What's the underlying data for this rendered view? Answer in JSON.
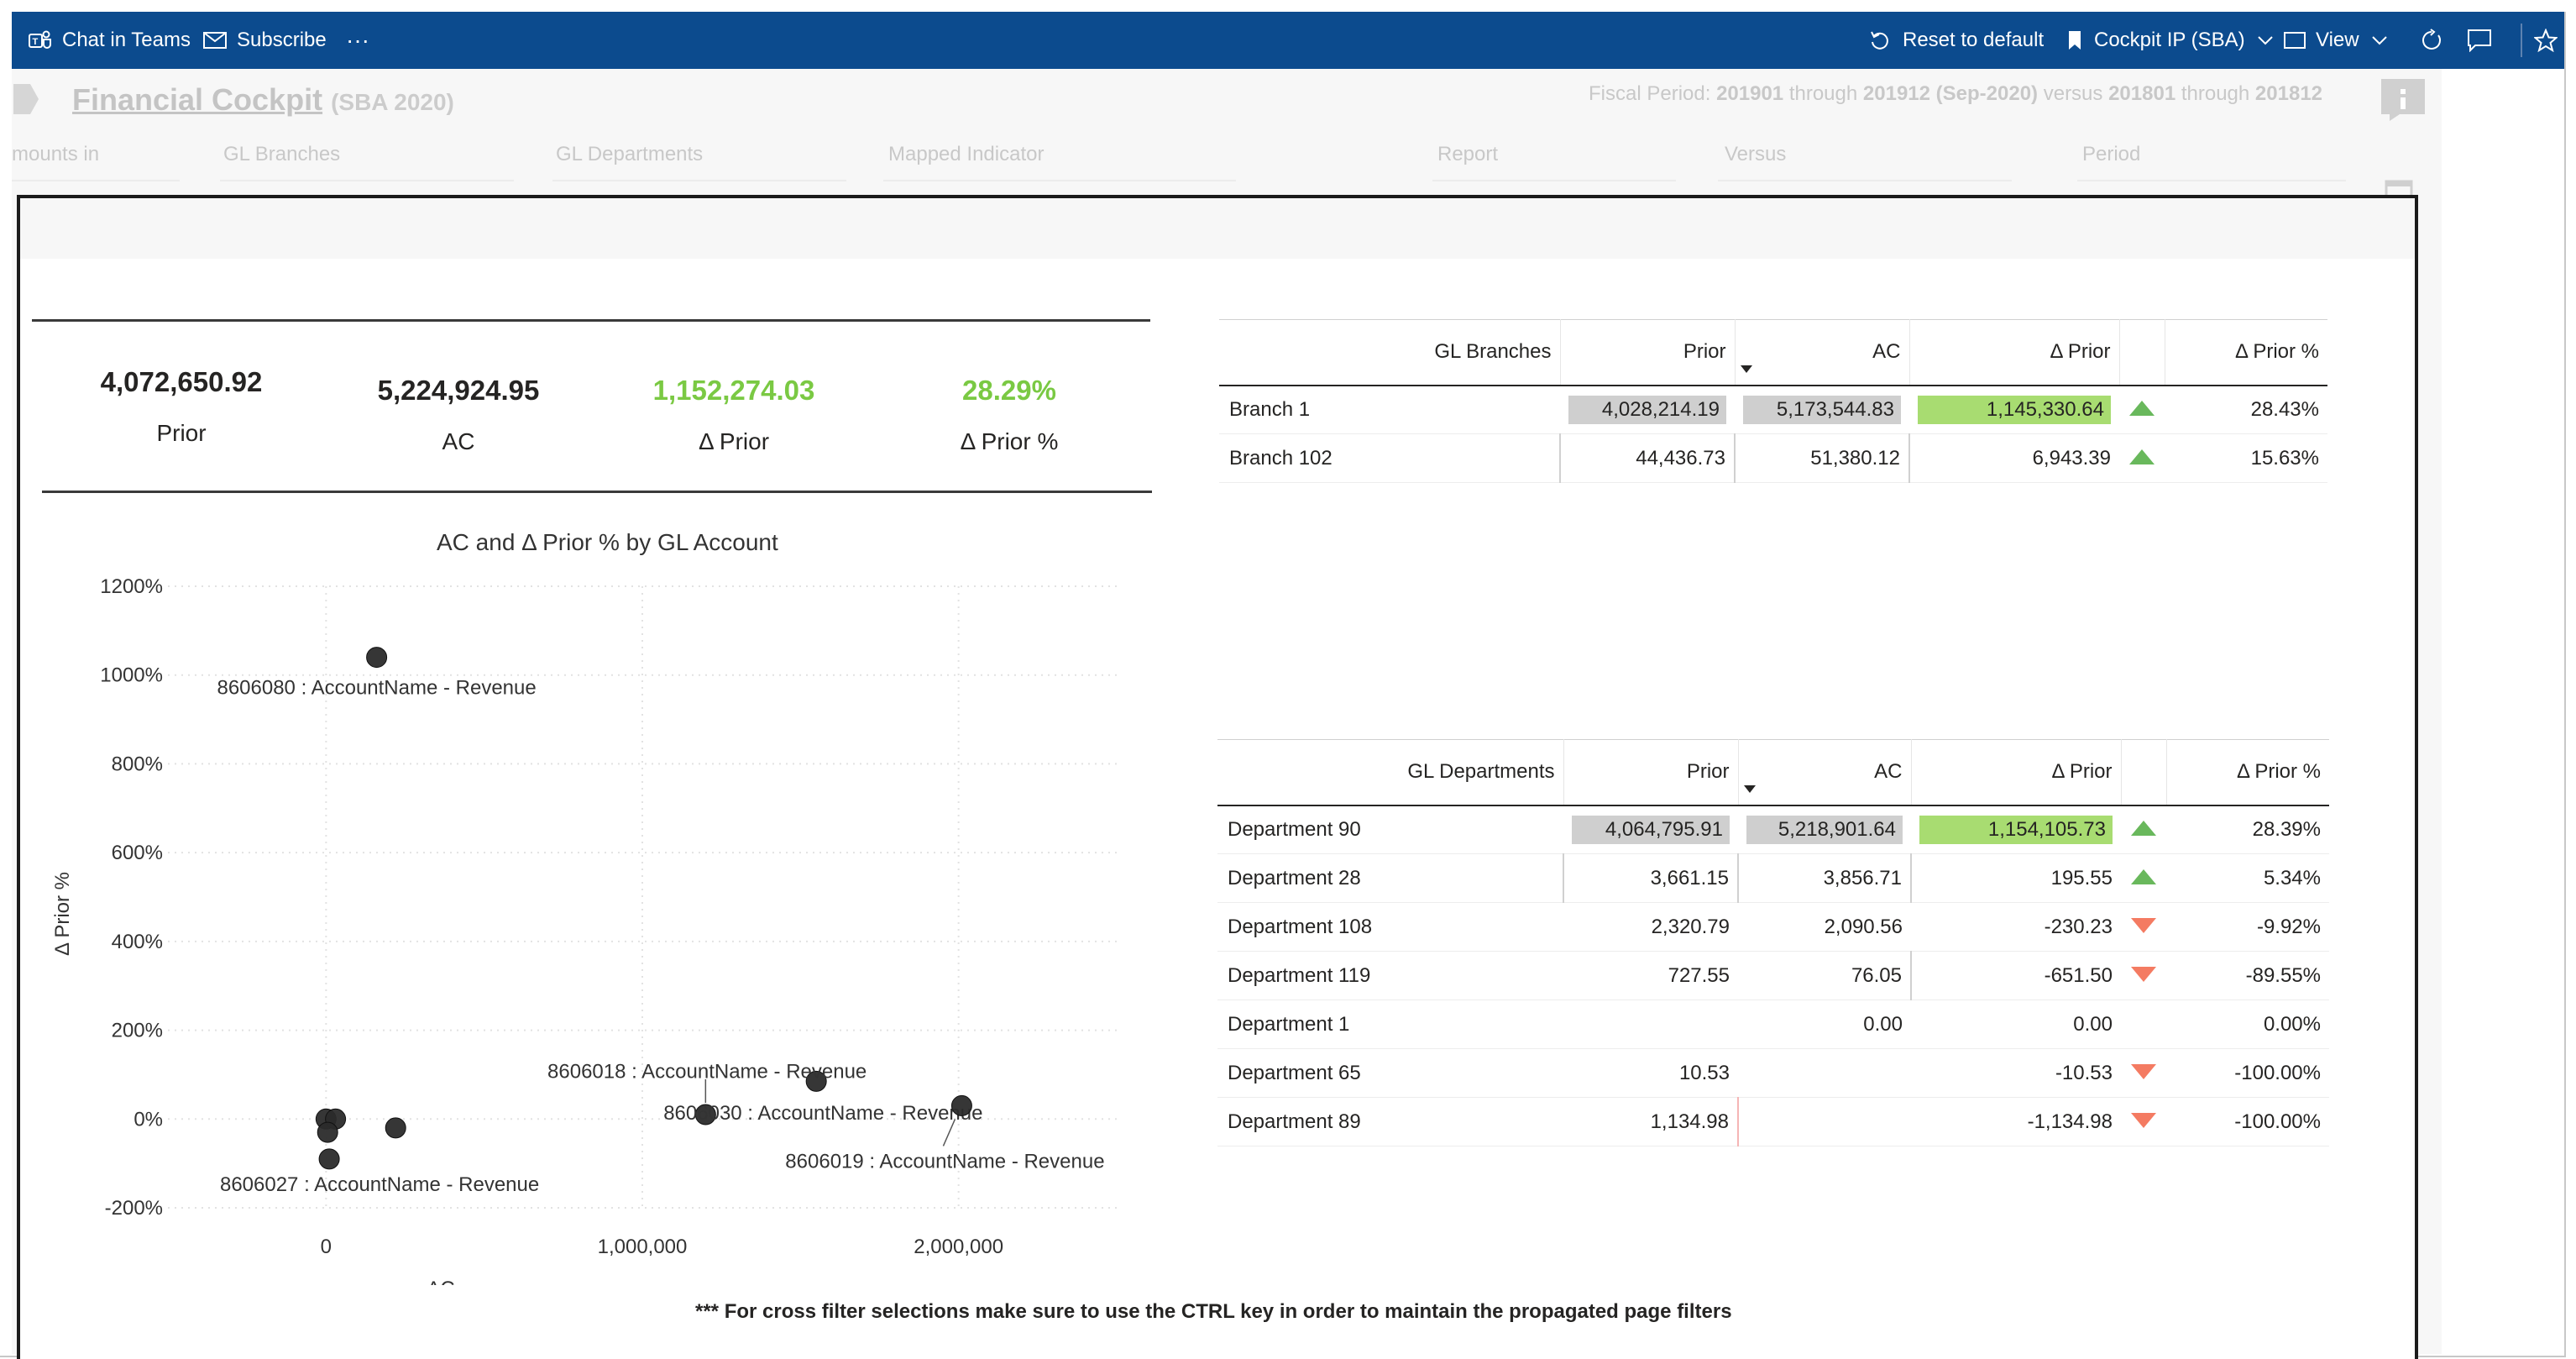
{
  "topbar": {
    "chat_label": "Chat in Teams",
    "subscribe_label": "Subscribe",
    "more_label": "···",
    "reset_label": "Reset to default",
    "bookmark_label": "Cockpit IP (SBA)",
    "view_label": "View"
  },
  "report": {
    "title": "Financial Cockpit",
    "subtitle": "(SBA 2020)",
    "fiscal": {
      "prefix": "Fiscal Period:",
      "from": "201901",
      "through1": "through",
      "to": "201912 (Sep-2020)",
      "versus": "versus",
      "vfrom": "201801",
      "through2": "through",
      "vto": "201812"
    },
    "slicers": [
      "mounts in",
      "GL Branches",
      "GL Departments",
      "Mapped Indicator",
      "Report",
      "Versus",
      "Period"
    ]
  },
  "kpis": [
    {
      "value": "4,072,650.92",
      "label": "Prior"
    },
    {
      "value": "5,224,924.95",
      "label": "AC"
    },
    {
      "value": "1,152,274.03",
      "label": "Δ Prior"
    },
    {
      "value": "28.29%",
      "label": "Δ Prior %"
    }
  ],
  "chart_data": {
    "type": "scatter",
    "title": "AC and Δ Prior % by GL Account",
    "xlabel": "AC",
    "ylabel": "Δ Prior %",
    "xlim": [
      -500000,
      2500000
    ],
    "ylim": [
      -200,
      1200
    ],
    "x_ticks": [
      {
        "value": 0,
        "label": "0"
      },
      {
        "value": 1000000,
        "label": "1,000,000"
      },
      {
        "value": 2000000,
        "label": "2,000,000"
      }
    ],
    "y_ticks": [
      {
        "value": 1200,
        "label": "1200%"
      },
      {
        "value": 1000,
        "label": "1000%"
      },
      {
        "value": 800,
        "label": "800%"
      },
      {
        "value": 600,
        "label": "600%"
      },
      {
        "value": 400,
        "label": "400%"
      },
      {
        "value": 200,
        "label": "200%"
      },
      {
        "value": 0,
        "label": "0%"
      },
      {
        "value": -200,
        "label": "-200%"
      }
    ],
    "grid": true,
    "points": [
      {
        "x": 160000,
        "y": 1040,
        "label": "8606080 : AccountName - Revenue"
      },
      {
        "x": 1200000,
        "y": 10,
        "label": "8606030 : AccountName - Revenue"
      },
      {
        "x": 1550000,
        "y": 85,
        "label": "8606018 : AccountName - Revenue"
      },
      {
        "x": 2010000,
        "y": 30,
        "label": "8606019 : AccountName - Revenue"
      },
      {
        "x": 0,
        "y": 0,
        "label": ""
      },
      {
        "x": 30000,
        "y": 0,
        "label": ""
      },
      {
        "x": 5000,
        "y": -30,
        "label": ""
      },
      {
        "x": 10000,
        "y": -90,
        "label": "8606027 : AccountName - Revenue"
      },
      {
        "x": 220000,
        "y": -20,
        "label": ""
      }
    ]
  },
  "branches": {
    "headers": [
      "GL Branches",
      "Prior",
      "AC",
      "Δ Prior",
      "",
      "Δ Prior %"
    ],
    "rows": [
      {
        "name": "Branch 1",
        "prior": "4,028,214.19",
        "ac": "5,173,544.83",
        "delta": "1,145,330.64",
        "trend": "up",
        "pct": "28.43%"
      },
      {
        "name": "Branch 102",
        "prior": "44,436.73",
        "ac": "51,380.12",
        "delta": "6,943.39",
        "trend": "up",
        "pct": "15.63%"
      }
    ]
  },
  "departments": {
    "headers": [
      "GL Departments",
      "Prior",
      "AC",
      "Δ Prior",
      "",
      "Δ Prior %"
    ],
    "rows": [
      {
        "name": "Department 90",
        "prior": "4,064,795.91",
        "ac": "5,218,901.64",
        "delta": "1,154,105.73",
        "trend": "up",
        "pct": "28.39%"
      },
      {
        "name": "Department 28",
        "prior": "3,661.15",
        "ac": "3,856.71",
        "delta": "195.55",
        "trend": "up",
        "pct": "5.34%"
      },
      {
        "name": "Department 108",
        "prior": "2,320.79",
        "ac": "2,090.56",
        "delta": "-230.23",
        "trend": "down",
        "pct": "-9.92%"
      },
      {
        "name": "Department 119",
        "prior": "727.55",
        "ac": "76.05",
        "delta": "-651.50",
        "trend": "down",
        "pct": "-89.55%"
      },
      {
        "name": "Department 1",
        "prior": "",
        "ac": "0.00",
        "delta": "0.00",
        "trend": "",
        "pct": "0.00%"
      },
      {
        "name": "Department 65",
        "prior": "10.53",
        "ac": "",
        "delta": "-10.53",
        "trend": "down",
        "pct": "-100.00%"
      },
      {
        "name": "Department 89",
        "prior": "1,134.98",
        "ac": "",
        "delta": "-1,134.98",
        "trend": "down",
        "pct": "-100.00%"
      }
    ]
  },
  "footnote": "*** For cross filter selections make sure to use the CTRL key in order to maintain the propagated page filters",
  "colors": {
    "topbar": "#0c4b8e",
    "positive": "#7ac943",
    "bar_grey": "#cfcfcf",
    "bar_green": "#a8dc71",
    "trend_up": "#69b85c",
    "trend_down": "#f47b62"
  }
}
